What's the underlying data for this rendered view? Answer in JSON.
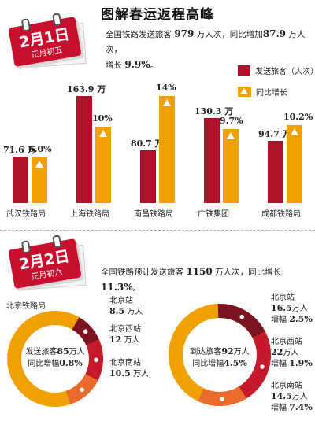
{
  "header": {
    "title": "图解春运返程高峰"
  },
  "day1": {
    "calendar": {
      "date": "2月1日",
      "sub": "正月初五"
    },
    "summary": {
      "p1": "全国铁路发送旅客",
      "v1": "979",
      "p2": "万人次，同比增加",
      "v2": "87.9",
      "p3": "万人次，",
      "p4": "增长",
      "v3": "9.9%",
      "p5": "。"
    },
    "legend": [
      {
        "label": "发送旅客（人次）",
        "color": "#b0122a"
      },
      {
        "label": "同比增长",
        "color": "#f0a000"
      }
    ]
  },
  "chart_data": {
    "type": "bar",
    "categories": [
      "武汉铁路局",
      "上海铁路局",
      "南昌铁路局",
      "广铁集团",
      "成都铁路局"
    ],
    "series": [
      {
        "name": "发送旅客（人次）",
        "values": [
          71.6,
          163.9,
          80.7,
          130.3,
          94.7
        ],
        "labels": [
          "71.6 万",
          "163.9 万",
          "80.7 万",
          "130.3 万",
          "94.7 万"
        ],
        "color": "#b0122a"
      },
      {
        "name": "同比增长",
        "values": [
          6.0,
          10,
          14,
          9.7,
          10.2
        ],
        "labels": [
          "6.0%",
          "10%",
          "14%",
          "9.7%",
          "10.2%"
        ],
        "color": "#f0a000"
      }
    ],
    "title": "",
    "xlabel": "",
    "ylabel": ""
  },
  "day2": {
    "calendar": {
      "date": "2月2日",
      "sub": "正月初六"
    },
    "summary": {
      "p1": "全国铁路预计发送旅客",
      "v1": "1150",
      "p2": "万人次，同比增长",
      "v2": "11.3%",
      "p3": "。"
    },
    "bureau_label": "北京铁路局",
    "donut_send": {
      "center": {
        "l1": "发送旅客",
        "v1": "85",
        "u1": "万人",
        "l2": "同比增幅",
        "v2": "0.8%"
      },
      "segments": [
        {
          "name": "北京站",
          "value": 8.5,
          "color": "#7a1420"
        },
        {
          "name": "北京西站",
          "value": 12,
          "color": "#c41a2b"
        },
        {
          "name": "北京南站",
          "value": 10.5,
          "color": "#ea6a2c"
        }
      ],
      "ring_color": "#f0a000",
      "labels": [
        {
          "name": "北京站",
          "value": "8.5",
          "unit": "万人"
        },
        {
          "name": "北京西站",
          "value": "12",
          "unit": "万人"
        },
        {
          "name": "北京南站",
          "value": "10.5",
          "unit": "万人"
        }
      ]
    },
    "donut_arrive": {
      "center": {
        "l1": "到达旅客",
        "v1": "92",
        "u1": "万人",
        "l2": "同比增幅",
        "v2": "4.5%"
      },
      "segments": [
        {
          "name": "北京站",
          "value": 16.5,
          "color": "#7a1420"
        },
        {
          "name": "北京西站",
          "value": 22,
          "color": "#c41a2b"
        },
        {
          "name": "北京南站",
          "value": 14.5,
          "color": "#ea6a2c"
        }
      ],
      "ring_color": "#f0a000",
      "labels": [
        {
          "name": "北京站",
          "value": "16.5",
          "unit": "万人",
          "grow_label": "增幅",
          "grow": "2.5%"
        },
        {
          "name": "北京西站",
          "value": "22",
          "unit": "万人",
          "grow_label": "增幅",
          "grow": "1.9%"
        },
        {
          "name": "北京南站",
          "value": "14.5",
          "unit": "万人",
          "grow_label": "增幅",
          "grow": "7.4%"
        }
      ]
    }
  }
}
